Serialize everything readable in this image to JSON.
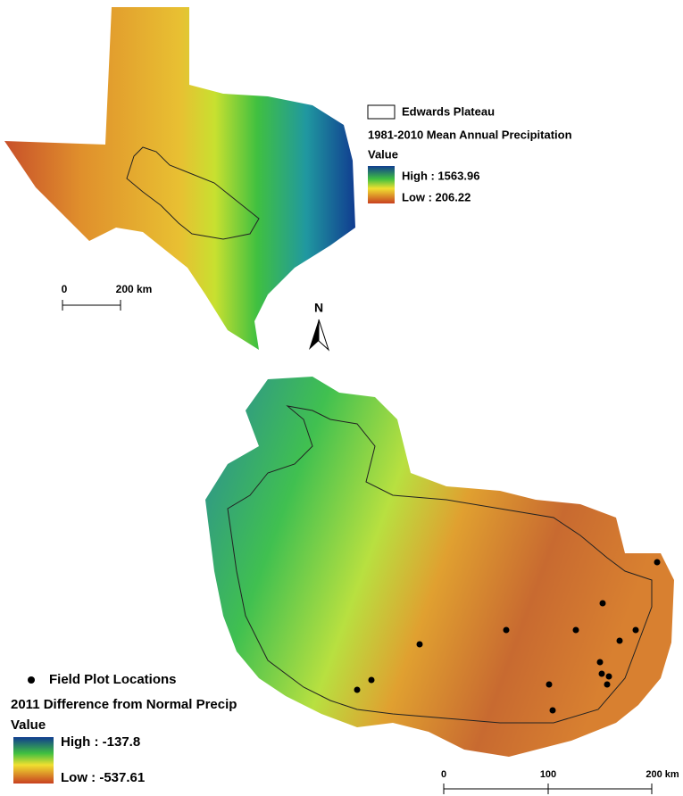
{
  "top_map": {
    "legend": {
      "outline_label": "Edwards Plateau",
      "title": "1981-2010 Mean Annual Precipitation",
      "value_heading": "Value",
      "high": "High : 1563.96",
      "low": "Low : 206.22"
    },
    "scale_bar": [
      "0",
      "200 km"
    ]
  },
  "north_arrow": "N",
  "bottom_map": {
    "legend": {
      "points_label": "Field Plot Locations",
      "title": "2011 Difference from Normal Precip",
      "value_heading": "Value",
      "high": "High : -137.8",
      "low": "Low : -537.61"
    },
    "scale_bar": [
      "0",
      "100",
      "200 km"
    ]
  }
}
